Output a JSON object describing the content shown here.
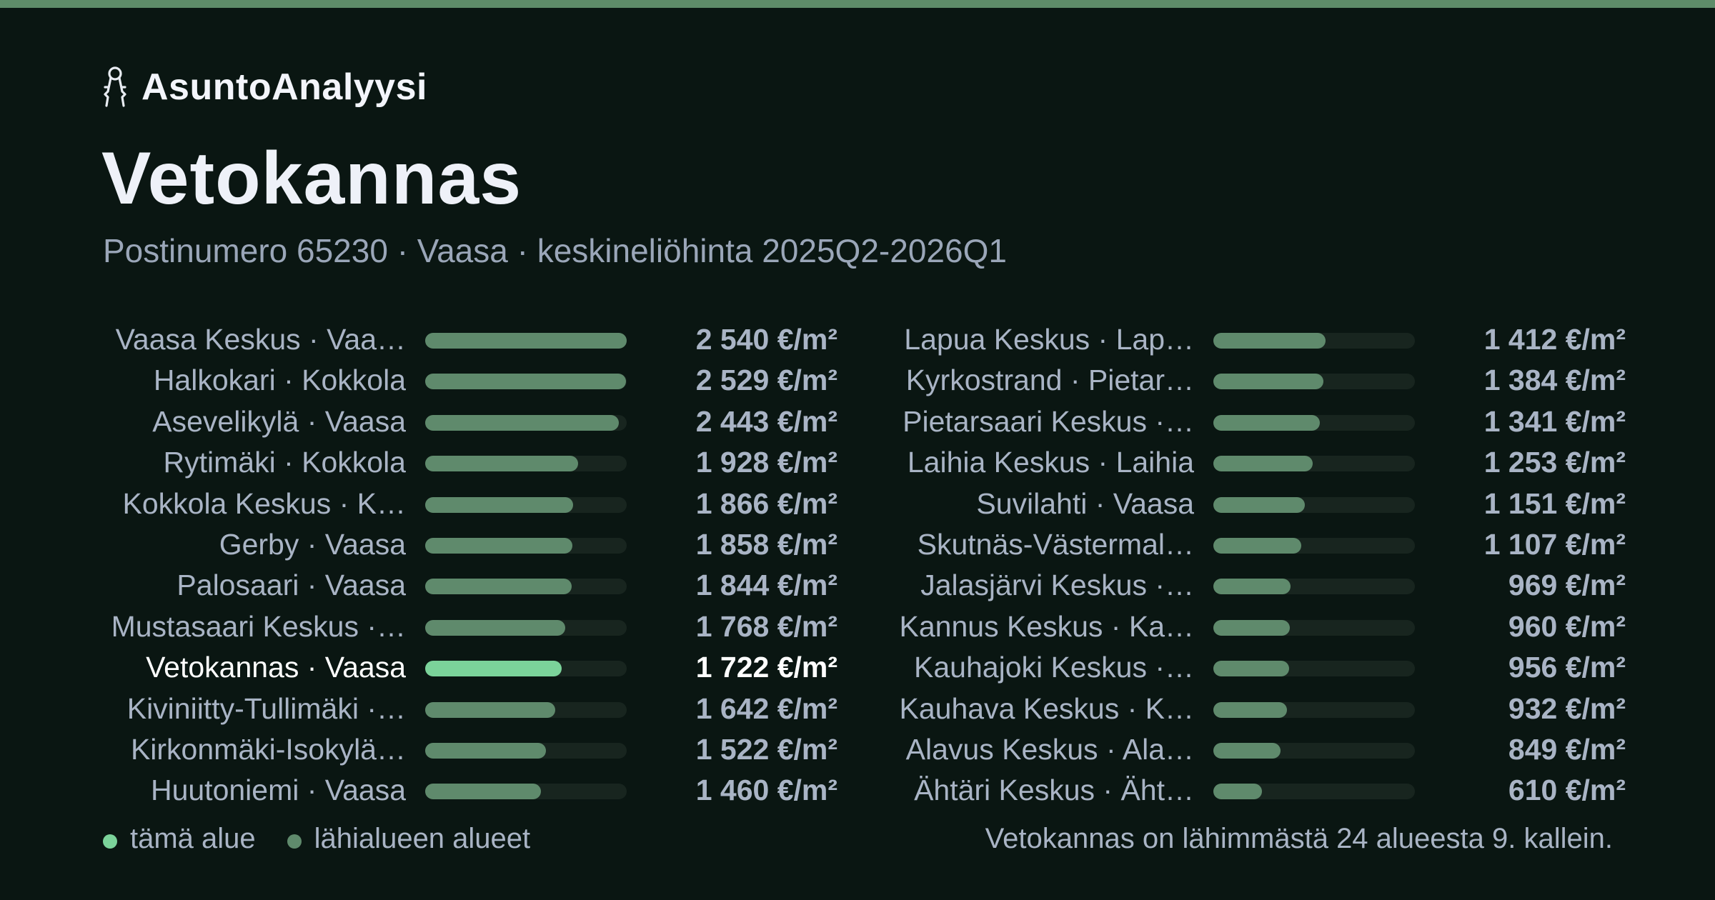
{
  "brand": {
    "name": "AsuntoAnalyysi",
    "icon": "keys-icon"
  },
  "title": "Vetokannas",
  "subtitle": "Postinumero 65230 · Vaasa · keskineliöhinta 2025Q2-2026Q1",
  "colors": {
    "accent": "#5e8c69",
    "bar_neighbor": "#5f8a6c",
    "bar_this": "#7bd39a",
    "track": "#18251f",
    "background": "#0a1612"
  },
  "chart_data": {
    "type": "bar",
    "orientation": "horizontal",
    "unit": "€/m²",
    "xlim": [
      0,
      2540
    ],
    "highlight_index": 8,
    "rows": [
      {
        "label": "Vaasa Keskus · Vaa…",
        "value": 2540,
        "value_label": "2 540 €/m²"
      },
      {
        "label": "Halkokari · Kokkola",
        "value": 2529,
        "value_label": "2 529 €/m²"
      },
      {
        "label": "Asevelikylä · Vaasa",
        "value": 2443,
        "value_label": "2 443 €/m²"
      },
      {
        "label": "Rytimäki · Kokkola",
        "value": 1928,
        "value_label": "1 928 €/m²"
      },
      {
        "label": "Kokkola Keskus · K…",
        "value": 1866,
        "value_label": "1 866 €/m²"
      },
      {
        "label": "Gerby · Vaasa",
        "value": 1858,
        "value_label": "1 858 €/m²"
      },
      {
        "label": "Palosaari · Vaasa",
        "value": 1844,
        "value_label": "1 844 €/m²"
      },
      {
        "label": "Mustasaari Keskus ·…",
        "value": 1768,
        "value_label": "1 768 €/m²"
      },
      {
        "label": "Vetokannas · Vaasa",
        "value": 1722,
        "value_label": "1 722 €/m²"
      },
      {
        "label": "Kiviniitty-Tullimäki ·…",
        "value": 1642,
        "value_label": "1 642 €/m²"
      },
      {
        "label": "Kirkonmäki-Isokylä…",
        "value": 1522,
        "value_label": "1 522 €/m²"
      },
      {
        "label": "Huutoniemi · Vaasa",
        "value": 1460,
        "value_label": "1 460 €/m²"
      },
      {
        "label": "Lapua Keskus · Lap…",
        "value": 1412,
        "value_label": "1 412 €/m²"
      },
      {
        "label": "Kyrkostrand · Pietar…",
        "value": 1384,
        "value_label": "1 384 €/m²"
      },
      {
        "label": "Pietarsaari Keskus ·…",
        "value": 1341,
        "value_label": "1 341 €/m²"
      },
      {
        "label": "Laihia Keskus · Laihia",
        "value": 1253,
        "value_label": "1 253 €/m²"
      },
      {
        "label": "Suvilahti · Vaasa",
        "value": 1151,
        "value_label": "1 151 €/m²"
      },
      {
        "label": "Skutnäs-Västermal…",
        "value": 1107,
        "value_label": "1 107 €/m²"
      },
      {
        "label": "Jalasjärvi Keskus ·…",
        "value": 969,
        "value_label": "969 €/m²"
      },
      {
        "label": "Kannus Keskus · Ka…",
        "value": 960,
        "value_label": "960 €/m²"
      },
      {
        "label": "Kauhajoki Keskus ·…",
        "value": 956,
        "value_label": "956 €/m²"
      },
      {
        "label": "Kauhava Keskus · K…",
        "value": 932,
        "value_label": "932 €/m²"
      },
      {
        "label": "Alavus Keskus · Ala…",
        "value": 849,
        "value_label": "849 €/m²"
      },
      {
        "label": "Ähtäri Keskus · Äht…",
        "value": 610,
        "value_label": "610 €/m²"
      }
    ]
  },
  "legend": {
    "this_area": "tämä alue",
    "neighbors": "lähialueen alueet"
  },
  "footnote": "Vetokannas on lähimmästä 24 alueesta 9. kallein."
}
